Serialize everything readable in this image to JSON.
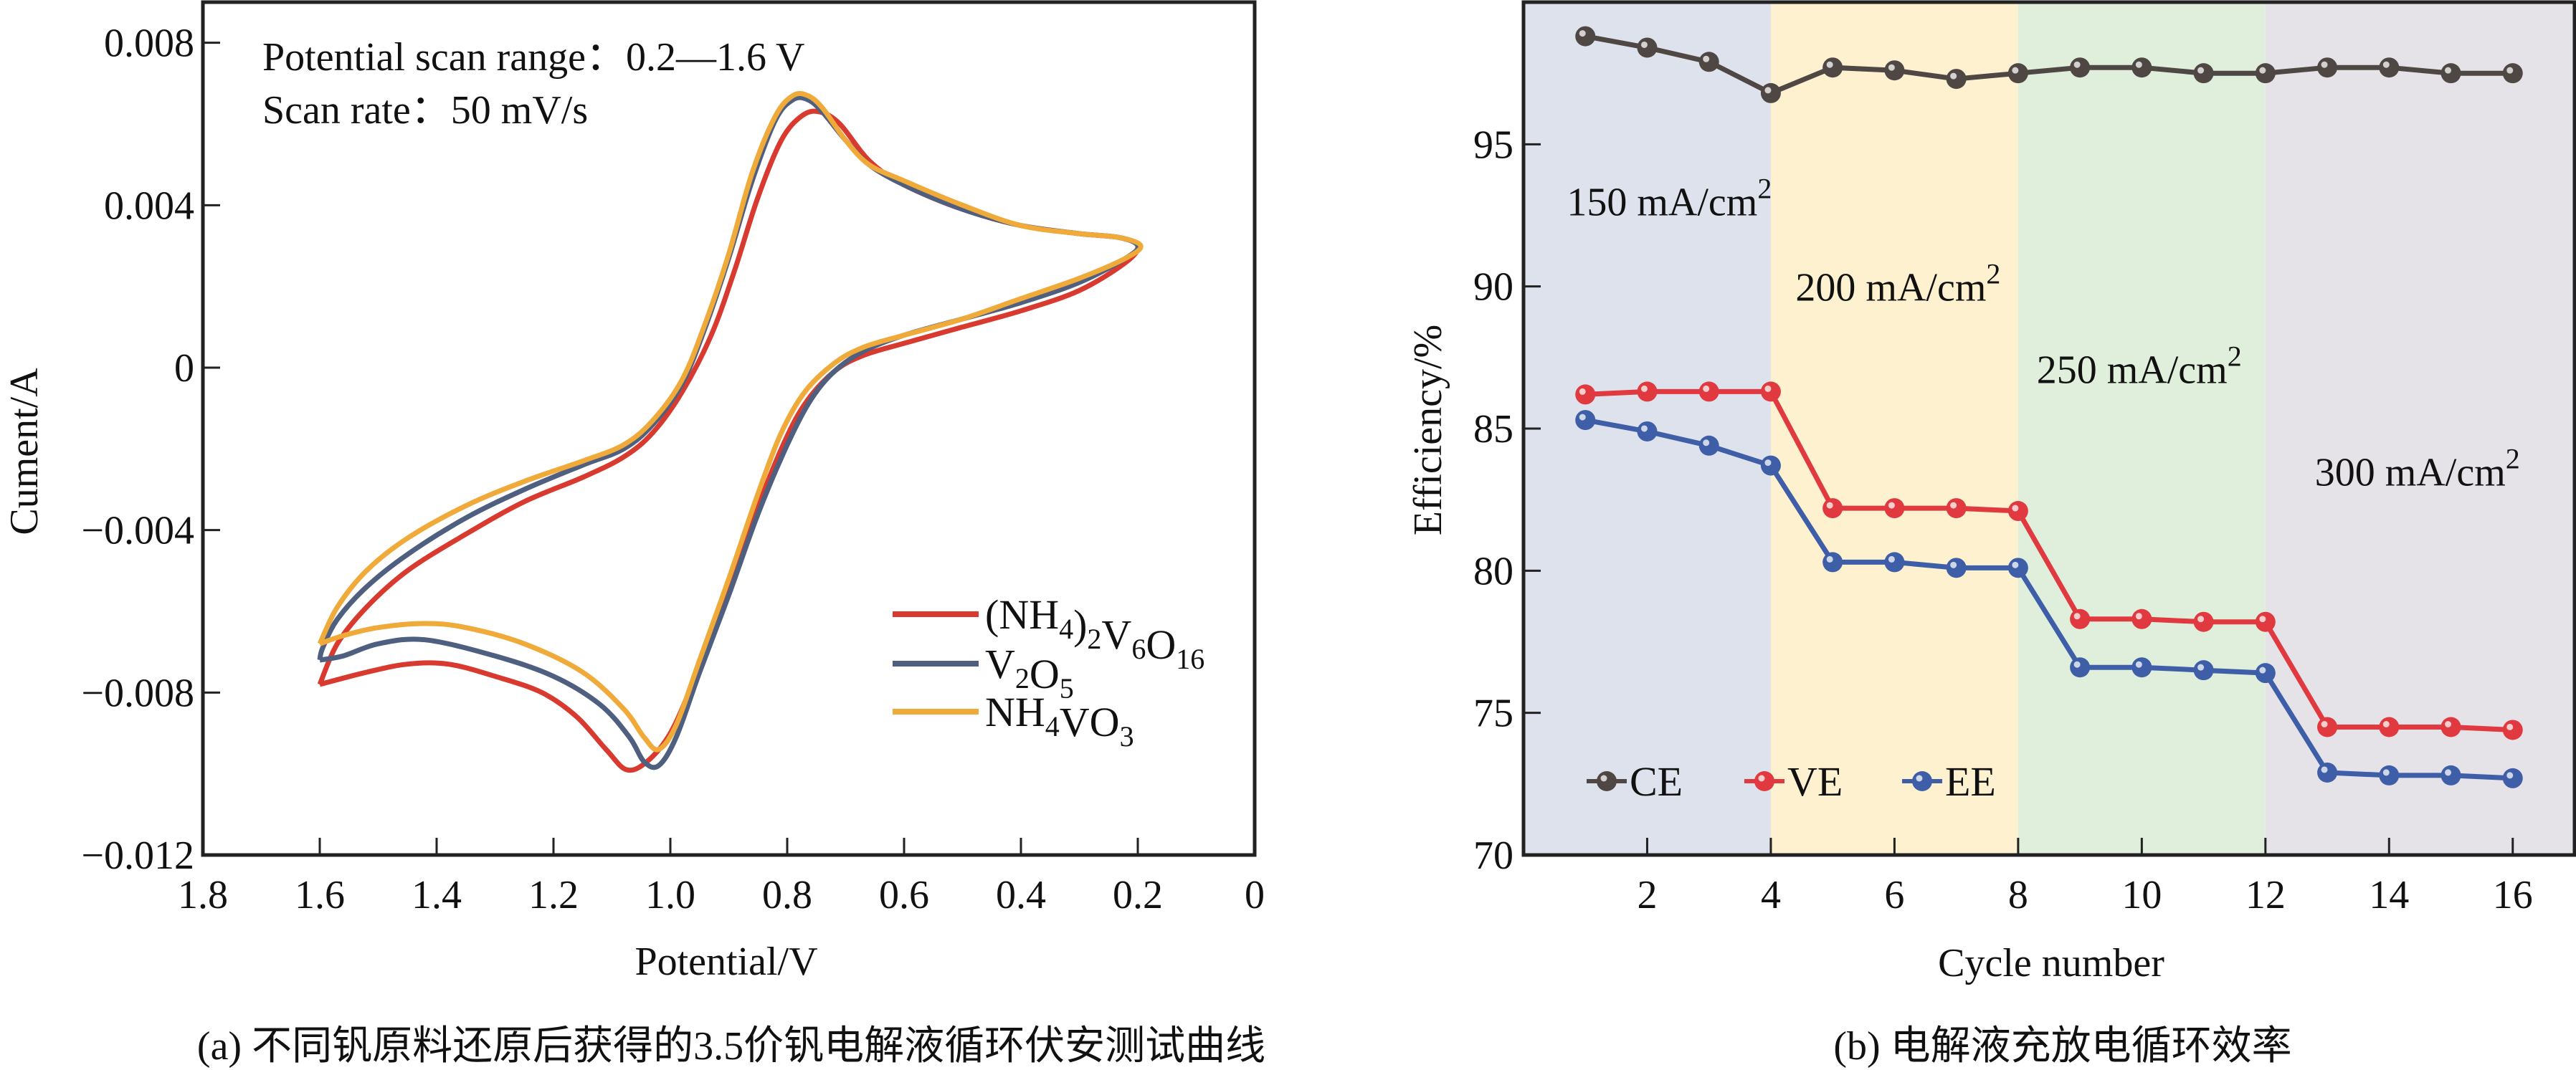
{
  "chart_data": [
    {
      "id": "a",
      "type": "line",
      "caption": "(a) 不同钒原料还原后获得的3.5价钒电解液循环伏安测试曲线",
      "xlabel": "Potential/V",
      "ylabel": "Cument/A",
      "xlim": [
        1.8,
        0
      ],
      "ylim": [
        -0.012,
        0.009
      ],
      "x_reversed": true,
      "xticks": [
        1.8,
        1.6,
        1.4,
        1.2,
        1.0,
        0.8,
        0.6,
        0.4,
        0.2,
        0
      ],
      "xtick_labels": [
        "1.8",
        "1.6",
        "1.4",
        "1.2",
        "1.0",
        "0.8",
        "0.6",
        "0.4",
        "0.2",
        "0"
      ],
      "yticks": [
        0.008,
        0.004,
        0,
        -0.004,
        -0.008,
        -0.012
      ],
      "ytick_labels": [
        "0.008",
        "0.004",
        "0",
        "−0.004",
        "−0.008",
        "−0.012"
      ],
      "grid": false,
      "annotations": [
        "Potential scan range：0.2—1.6 V",
        "Scan rate：50 mV/s"
      ],
      "legend_position": "bottom-right",
      "series": [
        {
          "name": "(NH4)2V6O16",
          "label_parts": [
            [
              "(NH",
              ""
            ],
            [
              "4",
              "sub"
            ],
            [
              ")",
              ""
            ],
            [
              "2",
              "sub"
            ],
            [
              "V",
              ""
            ],
            [
              "6",
              "sub"
            ],
            [
              "O",
              ""
            ],
            [
              "16",
              "sub"
            ]
          ],
          "color": "#d93a2f",
          "points": [
            [
              1.6,
              -0.0078
            ],
            [
              1.57,
              -0.0068
            ],
            [
              1.52,
              -0.0059
            ],
            [
              1.45,
              -0.005
            ],
            [
              1.35,
              -0.0041
            ],
            [
              1.25,
              -0.0033
            ],
            [
              1.15,
              -0.0027
            ],
            [
              1.08,
              -0.0022
            ],
            [
              1.03,
              -0.0016
            ],
            [
              0.98,
              -0.0006
            ],
            [
              0.93,
              0.0008
            ],
            [
              0.89,
              0.0024
            ],
            [
              0.85,
              0.0042
            ],
            [
              0.81,
              0.0056
            ],
            [
              0.775,
              0.0062
            ],
            [
              0.745,
              0.0063
            ],
            [
              0.71,
              0.006
            ],
            [
              0.66,
              0.0051
            ],
            [
              0.6,
              0.0045
            ],
            [
              0.5,
              0.0039
            ],
            [
              0.4,
              0.0035
            ],
            [
              0.3,
              0.0033
            ],
            [
              0.23,
              0.0032
            ],
            [
              0.2,
              0.003
            ],
            [
              0.22,
              0.0026
            ],
            [
              0.3,
              0.0019
            ],
            [
              0.4,
              0.0014
            ],
            [
              0.5,
              0.001
            ],
            [
              0.6,
              0.0006
            ],
            [
              0.67,
              0.0003
            ],
            [
              0.72,
              -0.0001
            ],
            [
              0.77,
              -0.0009
            ],
            [
              0.81,
              -0.002
            ],
            [
              0.86,
              -0.0038
            ],
            [
              0.91,
              -0.0058
            ],
            [
              0.96,
              -0.0077
            ],
            [
              1.0,
              -0.009
            ],
            [
              1.04,
              -0.0097
            ],
            [
              1.075,
              -0.0099
            ],
            [
              1.11,
              -0.0094
            ],
            [
              1.16,
              -0.0086
            ],
            [
              1.22,
              -0.008
            ],
            [
              1.3,
              -0.0076
            ],
            [
              1.38,
              -0.0073
            ],
            [
              1.45,
              -0.0073
            ],
            [
              1.52,
              -0.0075
            ],
            [
              1.6,
              -0.0078
            ]
          ]
        },
        {
          "name": "V2O5",
          "label_parts": [
            [
              "V",
              ""
            ],
            [
              "2",
              "sub"
            ],
            [
              "O",
              ""
            ],
            [
              "5",
              "sub"
            ]
          ],
          "color": "#4e5f80",
          "points": [
            [
              1.6,
              -0.0072
            ],
            [
              1.595,
              -0.0069
            ],
            [
              1.57,
              -0.0062
            ],
            [
              1.52,
              -0.0054
            ],
            [
              1.45,
              -0.0046
            ],
            [
              1.35,
              -0.0037
            ],
            [
              1.25,
              -0.003
            ],
            [
              1.15,
              -0.0024
            ],
            [
              1.08,
              -0.002
            ],
            [
              1.03,
              -0.0014
            ],
            [
              0.98,
              -0.0004
            ],
            [
              0.94,
              0.001
            ],
            [
              0.9,
              0.0027
            ],
            [
              0.86,
              0.0046
            ],
            [
              0.82,
              0.0061
            ],
            [
              0.79,
              0.0066
            ],
            [
              0.765,
              0.0066
            ],
            [
              0.74,
              0.0063
            ],
            [
              0.7,
              0.0056
            ],
            [
              0.66,
              0.005
            ],
            [
              0.6,
              0.0045
            ],
            [
              0.5,
              0.0039
            ],
            [
              0.4,
              0.0035
            ],
            [
              0.3,
              0.0033
            ],
            [
              0.23,
              0.0032
            ],
            [
              0.2,
              0.003
            ],
            [
              0.22,
              0.0027
            ],
            [
              0.3,
              0.0021
            ],
            [
              0.4,
              0.0016
            ],
            [
              0.5,
              0.0012
            ],
            [
              0.6,
              0.0008
            ],
            [
              0.67,
              0.0004
            ],
            [
              0.72,
              -0.0001
            ],
            [
              0.76,
              -0.0008
            ],
            [
              0.8,
              -0.0019
            ],
            [
              0.85,
              -0.0036
            ],
            [
              0.9,
              -0.0056
            ],
            [
              0.95,
              -0.0075
            ],
            [
              0.99,
              -0.0091
            ],
            [
              1.02,
              -0.0098
            ],
            [
              1.045,
              -0.0097
            ],
            [
              1.07,
              -0.0091
            ],
            [
              1.12,
              -0.0083
            ],
            [
              1.2,
              -0.0076
            ],
            [
              1.3,
              -0.0071
            ],
            [
              1.42,
              -0.0067
            ],
            [
              1.5,
              -0.0068
            ],
            [
              1.56,
              -0.0071
            ],
            [
              1.6,
              -0.0072
            ]
          ]
        },
        {
          "name": "NH4VO3",
          "label_parts": [
            [
              "NH",
              ""
            ],
            [
              "4",
              "sub"
            ],
            [
              "VO",
              ""
            ],
            [
              "3",
              "sub"
            ]
          ],
          "color": "#f0aa3a",
          "points": [
            [
              1.6,
              -0.0068
            ],
            [
              1.57,
              -0.0059
            ],
            [
              1.52,
              -0.005
            ],
            [
              1.45,
              -0.0042
            ],
            [
              1.35,
              -0.0034
            ],
            [
              1.25,
              -0.0028
            ],
            [
              1.15,
              -0.0023
            ],
            [
              1.08,
              -0.0019
            ],
            [
              1.03,
              -0.0013
            ],
            [
              0.98,
              -0.0003
            ],
            [
              0.94,
              0.0011
            ],
            [
              0.9,
              0.0028
            ],
            [
              0.86,
              0.0048
            ],
            [
              0.82,
              0.0062
            ],
            [
              0.79,
              0.0067
            ],
            [
              0.765,
              0.0067
            ],
            [
              0.74,
              0.0064
            ],
            [
              0.7,
              0.0056
            ],
            [
              0.66,
              0.005
            ],
            [
              0.6,
              0.0046
            ],
            [
              0.5,
              0.004
            ],
            [
              0.4,
              0.0035
            ],
            [
              0.3,
              0.0033
            ],
            [
              0.23,
              0.0032
            ],
            [
              0.195,
              0.003
            ],
            [
              0.22,
              0.0027
            ],
            [
              0.3,
              0.0022
            ],
            [
              0.4,
              0.0017
            ],
            [
              0.5,
              0.0012
            ],
            [
              0.6,
              0.0008
            ],
            [
              0.67,
              0.0005
            ],
            [
              0.72,
              0.0001
            ],
            [
              0.77,
              -0.0006
            ],
            [
              0.81,
              -0.0016
            ],
            [
              0.85,
              -0.0031
            ],
            [
              0.9,
              -0.0052
            ],
            [
              0.95,
              -0.0072
            ],
            [
              0.99,
              -0.0088
            ],
            [
              1.02,
              -0.0094
            ],
            [
              1.045,
              -0.0091
            ],
            [
              1.08,
              -0.0084
            ],
            [
              1.15,
              -0.0075
            ],
            [
              1.25,
              -0.0068
            ],
            [
              1.35,
              -0.0064
            ],
            [
              1.42,
              -0.0063
            ],
            [
              1.5,
              -0.0064
            ],
            [
              1.56,
              -0.0066
            ],
            [
              1.6,
              -0.0068
            ]
          ]
        }
      ]
    },
    {
      "id": "b",
      "type": "line",
      "caption": "(b) 电解液充放电循环效率",
      "xlabel": "Cycle number",
      "ylabel": "Efficiency/%",
      "xlim": [
        0,
        17
      ],
      "ylim": [
        70,
        100
      ],
      "xticks": [
        2,
        4,
        6,
        8,
        10,
        12,
        14,
        16
      ],
      "xtick_labels": [
        "2",
        "4",
        "6",
        "8",
        "10",
        "12",
        "14",
        "16"
      ],
      "yticks": [
        70,
        75,
        80,
        85,
        90,
        95
      ],
      "ytick_labels": [
        "70",
        "75",
        "80",
        "85",
        "90",
        "95"
      ],
      "grid": false,
      "legend_position": "bottom-left",
      "regions": [
        {
          "from": 0,
          "to": 4,
          "label": "150 mA/cm",
          "sup": "2",
          "color": "#dde2ec",
          "label_x": 0.7,
          "label_y": 92.5
        },
        {
          "from": 4,
          "to": 8,
          "label": "200 mA/cm",
          "sup": "2",
          "color": "#fdf1d0",
          "label_x": 4.4,
          "label_y": 89.5
        },
        {
          "from": 8,
          "to": 12,
          "label": "250 mA/cm",
          "sup": "2",
          "color": "#e0efdc",
          "label_x": 8.3,
          "label_y": 86.6
        },
        {
          "from": 12,
          "to": 17,
          "label": "300 mA/cm",
          "sup": "2",
          "color": "#e5e2e8",
          "label_x": 12.8,
          "label_y": 83.0
        }
      ],
      "x": [
        1,
        2,
        3,
        4,
        5,
        6,
        7,
        8,
        9,
        10,
        11,
        12,
        13,
        14,
        15,
        16
      ],
      "series": [
        {
          "name": "CE",
          "color": "#4f4744",
          "values": [
            98.8,
            98.4,
            97.9,
            96.8,
            97.7,
            97.6,
            97.3,
            97.5,
            97.7,
            97.7,
            97.5,
            97.5,
            97.7,
            97.7,
            97.5,
            97.5
          ]
        },
        {
          "name": "VE",
          "color": "#e0393f",
          "values": [
            86.2,
            86.3,
            86.3,
            86.3,
            82.2,
            82.2,
            82.2,
            82.1,
            78.3,
            78.3,
            78.2,
            78.2,
            74.5,
            74.5,
            74.5,
            74.4
          ]
        },
        {
          "name": "EE",
          "color": "#3f5ea8",
          "values": [
            85.3,
            84.9,
            84.4,
            83.7,
            80.3,
            80.3,
            80.1,
            80.1,
            76.6,
            76.6,
            76.5,
            76.4,
            72.9,
            72.8,
            72.8,
            72.7
          ]
        }
      ]
    }
  ]
}
